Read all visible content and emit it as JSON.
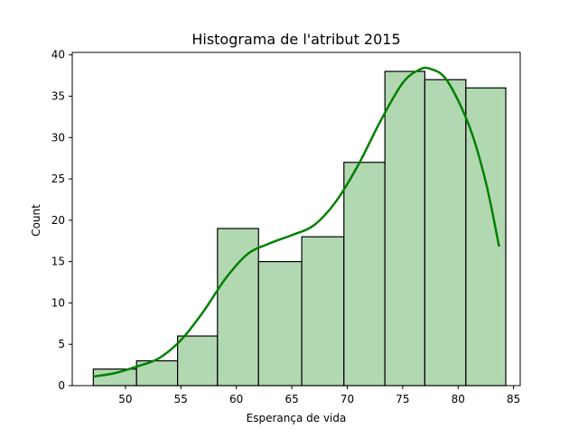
{
  "chart_data": {
    "type": "histogram",
    "title": "Histograma de l'atribut 2015",
    "xlabel": "Esperança de vida",
    "ylabel": "Count",
    "xlim": [
      45.2,
      85.6
    ],
    "ylim": [
      0,
      40.3
    ],
    "x_ticks": [
      50,
      55,
      60,
      65,
      70,
      75,
      80,
      85
    ],
    "y_ticks": [
      0,
      5,
      10,
      15,
      20,
      25,
      30,
      35,
      40
    ],
    "bins": [
      {
        "start": 47.1,
        "end": 51.0,
        "count": 2
      },
      {
        "start": 51.0,
        "end": 54.7,
        "count": 3
      },
      {
        "start": 54.7,
        "end": 58.3,
        "count": 6
      },
      {
        "start": 58.3,
        "end": 62.0,
        "count": 19
      },
      {
        "start": 62.0,
        "end": 65.9,
        "count": 15
      },
      {
        "start": 65.9,
        "end": 69.7,
        "count": 18
      },
      {
        "start": 69.7,
        "end": 73.4,
        "count": 27
      },
      {
        "start": 73.4,
        "end": 77.0,
        "count": 38
      },
      {
        "start": 77.0,
        "end": 80.7,
        "count": 37
      },
      {
        "start": 80.7,
        "end": 84.3,
        "count": 36
      }
    ],
    "kde": {
      "x": [
        47.1,
        49.0,
        51.0,
        53.0,
        55.0,
        57.0,
        59.0,
        61.0,
        63.0,
        65.0,
        67.0,
        69.0,
        71.0,
        73.0,
        75.0,
        76.5,
        77.5,
        79.0,
        81.0,
        82.5,
        83.7
      ],
      "y": [
        1.1,
        1.5,
        2.3,
        3.3,
        5.5,
        8.9,
        12.9,
        15.9,
        17.2,
        18.2,
        19.4,
        22.3,
        26.7,
        32.0,
        36.6,
        38.2,
        38.3,
        36.9,
        31.4,
        24.6,
        16.8
      ]
    },
    "colors": {
      "bar_fill": "#b2d8b2",
      "bar_edge": "#000000",
      "kde_line": "#008000"
    }
  }
}
